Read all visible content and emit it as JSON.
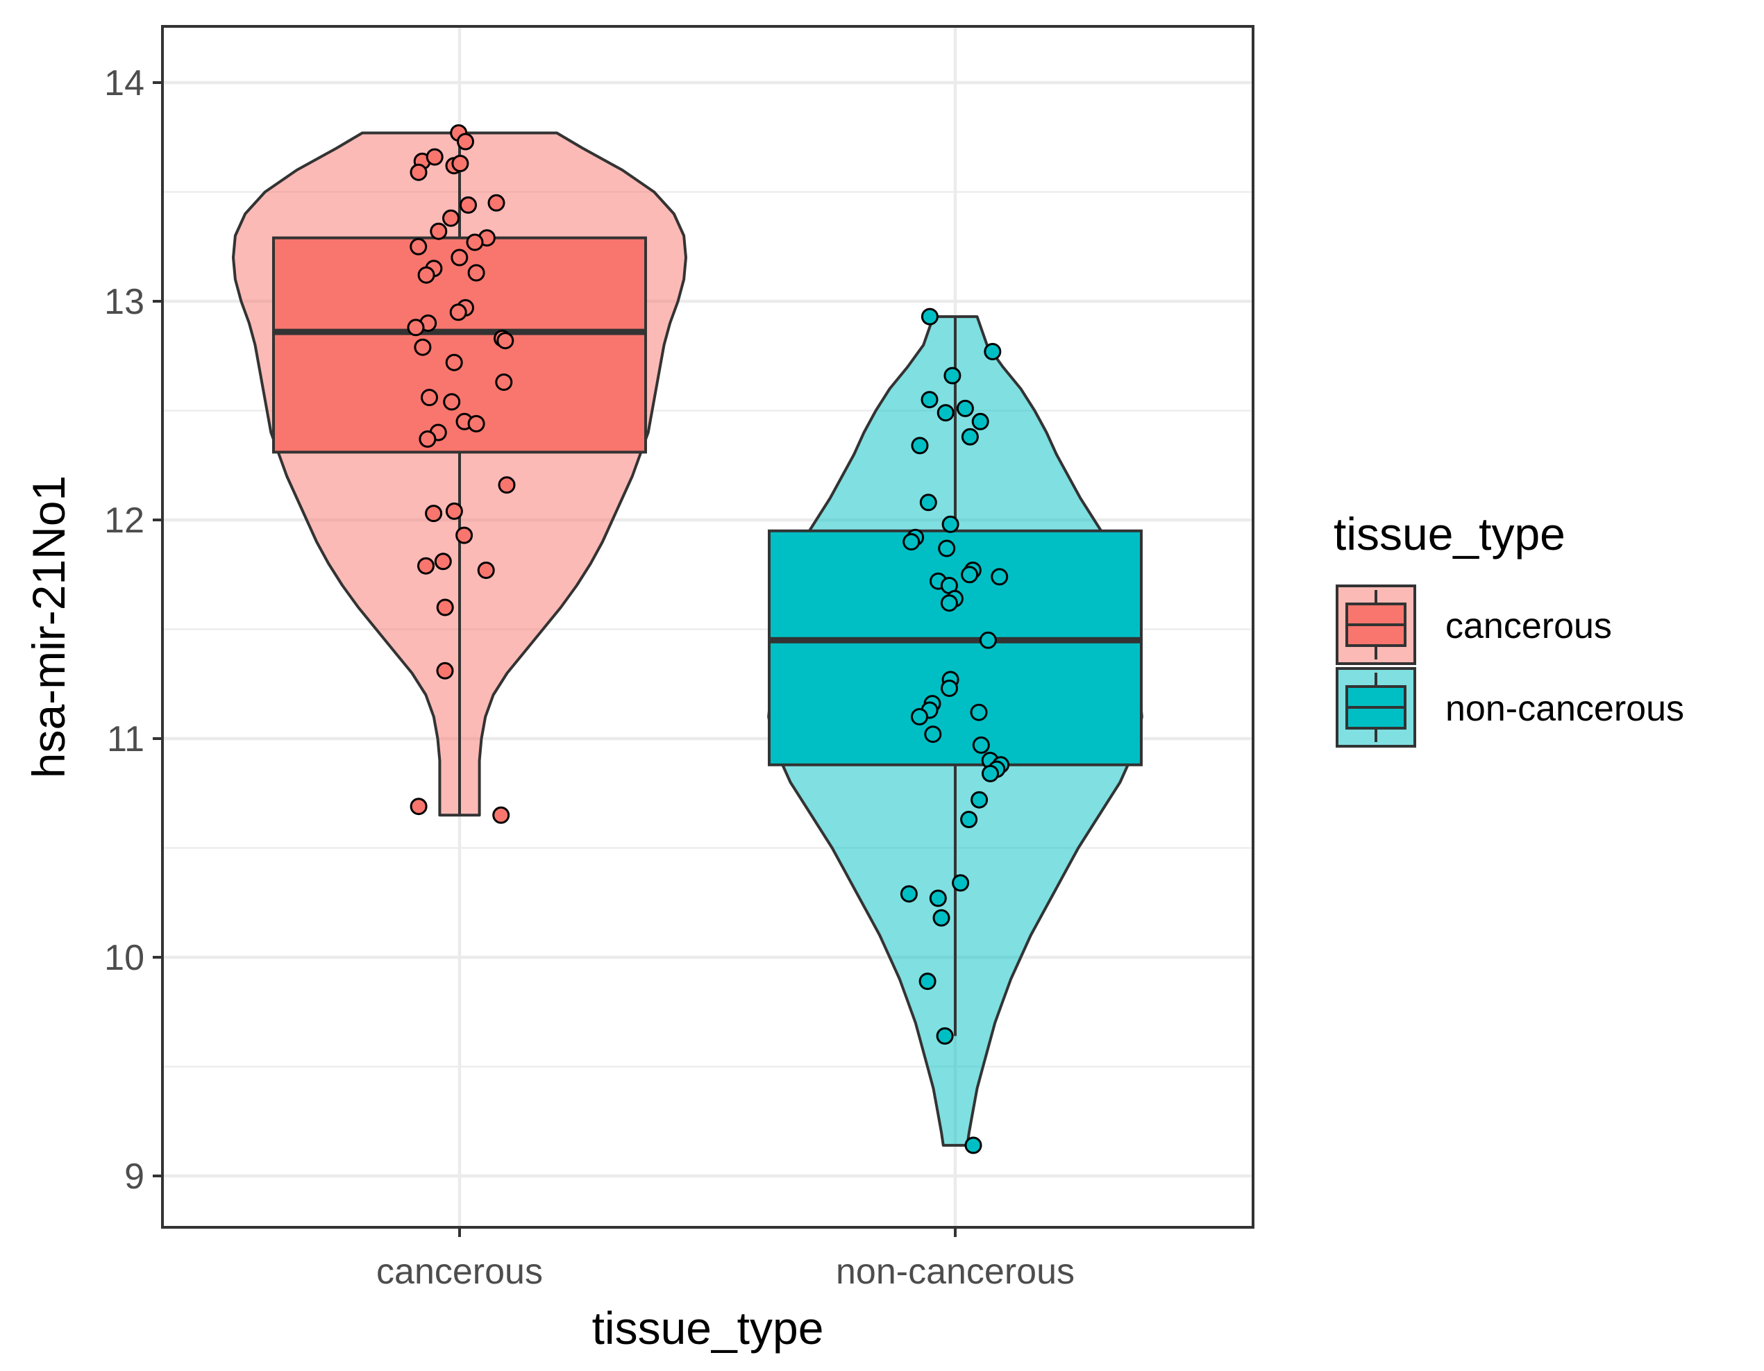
{
  "chart_data": {
    "type": "violin",
    "xlabel": "tissue_type",
    "ylabel": "hsa-mir-21No1",
    "categories": [
      "cancerous",
      "non-cancerous"
    ],
    "y_ticks": [
      "9",
      "10",
      "11",
      "12",
      "13",
      "14"
    ],
    "ylim": [
      8.8,
      14.25
    ],
    "grid": true,
    "legend": {
      "title": "tissue_type",
      "position": "right",
      "entries": [
        "cancerous",
        "non-cancerous"
      ]
    },
    "colors": {
      "cancerous": "#F8766D",
      "non-cancerous": "#00BFC4",
      "outline": "#333333",
      "panel_border": "#333333",
      "grid": "#ebebeb"
    },
    "series": [
      {
        "name": "cancerous",
        "box": {
          "lower_whisker": 10.65,
          "q1": 12.31,
          "median": 12.86,
          "q3": 13.29,
          "upper_whisker": 13.77
        },
        "violin_range": [
          10.65,
          13.77
        ],
        "violin_profile": [
          [
            10.65,
            0.1
          ],
          [
            10.75,
            0.1
          ],
          [
            10.9,
            0.1
          ],
          [
            11.0,
            0.11
          ],
          [
            11.1,
            0.13
          ],
          [
            11.2,
            0.17
          ],
          [
            11.3,
            0.24
          ],
          [
            11.4,
            0.33
          ],
          [
            11.5,
            0.42
          ],
          [
            11.6,
            0.51
          ],
          [
            11.7,
            0.59
          ],
          [
            11.8,
            0.66
          ],
          [
            11.9,
            0.72
          ],
          [
            12.0,
            0.77
          ],
          [
            12.1,
            0.82
          ],
          [
            12.2,
            0.87
          ],
          [
            12.3,
            0.91
          ],
          [
            12.4,
            0.95
          ],
          [
            12.5,
            0.97
          ],
          [
            12.6,
            0.99
          ],
          [
            12.7,
            1.01
          ],
          [
            12.8,
            1.03
          ],
          [
            12.9,
            1.06
          ],
          [
            13.0,
            1.1
          ],
          [
            13.1,
            1.13
          ],
          [
            13.2,
            1.14
          ],
          [
            13.3,
            1.13
          ],
          [
            13.4,
            1.08
          ],
          [
            13.5,
            0.98
          ],
          [
            13.6,
            0.82
          ],
          [
            13.7,
            0.62
          ],
          [
            13.77,
            0.49
          ]
        ],
        "points": [
          13.77,
          13.73,
          13.64,
          13.66,
          13.62,
          13.63,
          13.59,
          13.45,
          13.44,
          13.38,
          13.32,
          13.29,
          13.27,
          13.25,
          13.2,
          13.15,
          13.13,
          13.12,
          12.97,
          12.95,
          12.9,
          12.88,
          12.83,
          12.82,
          12.79,
          12.72,
          12.63,
          12.56,
          12.54,
          12.45,
          12.44,
          12.4,
          12.37,
          12.16,
          12.04,
          12.03,
          11.93,
          11.81,
          11.79,
          11.77,
          11.6,
          11.31,
          10.69,
          10.65
        ]
      },
      {
        "name": "non-cancerous",
        "box": {
          "lower_whisker": 9.64,
          "q1": 10.88,
          "median": 11.45,
          "q3": 11.95,
          "upper_whisker": 12.93
        },
        "violin_range": [
          9.14,
          12.93
        ],
        "violin_profile": [
          [
            9.14,
            0.06
          ],
          [
            9.2,
            0.07
          ],
          [
            9.3,
            0.09
          ],
          [
            9.4,
            0.11
          ],
          [
            9.5,
            0.14
          ],
          [
            9.6,
            0.17
          ],
          [
            9.7,
            0.2
          ],
          [
            9.8,
            0.24
          ],
          [
            9.9,
            0.28
          ],
          [
            10.0,
            0.33
          ],
          [
            10.1,
            0.38
          ],
          [
            10.2,
            0.44
          ],
          [
            10.3,
            0.5
          ],
          [
            10.4,
            0.56
          ],
          [
            10.5,
            0.62
          ],
          [
            10.6,
            0.69
          ],
          [
            10.7,
            0.76
          ],
          [
            10.8,
            0.83
          ],
          [
            10.9,
            0.88
          ],
          [
            11.0,
            0.92
          ],
          [
            11.1,
            0.94
          ],
          [
            11.2,
            0.93
          ],
          [
            11.3,
            0.91
          ],
          [
            11.4,
            0.89
          ],
          [
            11.5,
            0.88
          ],
          [
            11.6,
            0.87
          ],
          [
            11.7,
            0.85
          ],
          [
            11.8,
            0.82
          ],
          [
            11.9,
            0.77
          ],
          [
            12.0,
            0.7
          ],
          [
            12.1,
            0.63
          ],
          [
            12.2,
            0.57
          ],
          [
            12.3,
            0.51
          ],
          [
            12.4,
            0.46
          ],
          [
            12.5,
            0.4
          ],
          [
            12.6,
            0.33
          ],
          [
            12.7,
            0.24
          ],
          [
            12.8,
            0.16
          ],
          [
            12.93,
            0.11
          ]
        ],
        "points": [
          12.93,
          12.77,
          12.66,
          12.55,
          12.51,
          12.49,
          12.45,
          12.38,
          12.34,
          12.08,
          11.98,
          11.92,
          11.9,
          11.87,
          11.77,
          11.75,
          11.74,
          11.72,
          11.7,
          11.64,
          11.62,
          11.45,
          11.27,
          11.23,
          11.16,
          11.13,
          11.12,
          11.1,
          11.02,
          10.97,
          10.9,
          10.88,
          10.86,
          10.84,
          10.72,
          10.63,
          10.34,
          10.29,
          10.27,
          10.18,
          9.89,
          9.64,
          9.14
        ]
      }
    ]
  }
}
